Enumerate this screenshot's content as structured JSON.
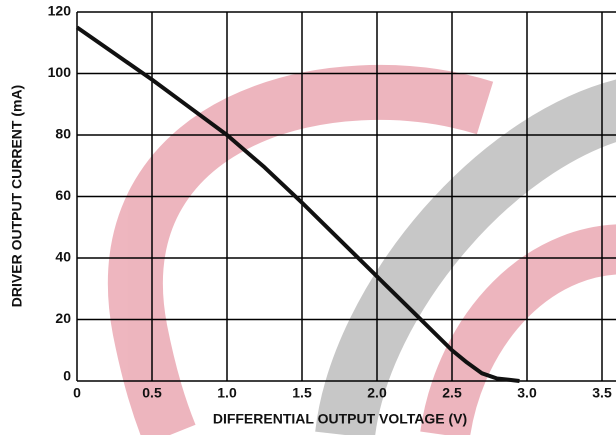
{
  "chart_data": {
    "type": "line",
    "xlabel": "DIFFERENTIAL OUTPUT VOLTAGE (V)",
    "ylabel": "DRIVER OUTPUT CURRENT (mA)",
    "x": [
      0,
      0.25,
      0.5,
      0.75,
      1.0,
      1.25,
      1.5,
      1.75,
      2.0,
      2.25,
      2.5,
      2.6,
      2.7,
      2.8,
      2.9,
      2.95
    ],
    "series": [
      {
        "color": "#111111",
        "values": [
          115,
          106.5,
          98,
          89,
          80,
          69.5,
          58,
          46,
          34,
          22,
          10,
          6,
          2.5,
          0.8,
          0.3,
          0
        ]
      }
    ],
    "xlim": [
      0,
      3.5
    ],
    "xticks": [
      0,
      0.5,
      {
        "value": 1,
        "label": "1.0"
      },
      1.5,
      {
        "value": 2,
        "label": "2.0"
      },
      2.5,
      {
        "value": 3,
        "label": "3.0"
      },
      3.5
    ],
    "ylim": [
      0,
      120
    ],
    "yticks": [
      0,
      20,
      40,
      60,
      80,
      100,
      120
    ],
    "grid": true
  }
}
